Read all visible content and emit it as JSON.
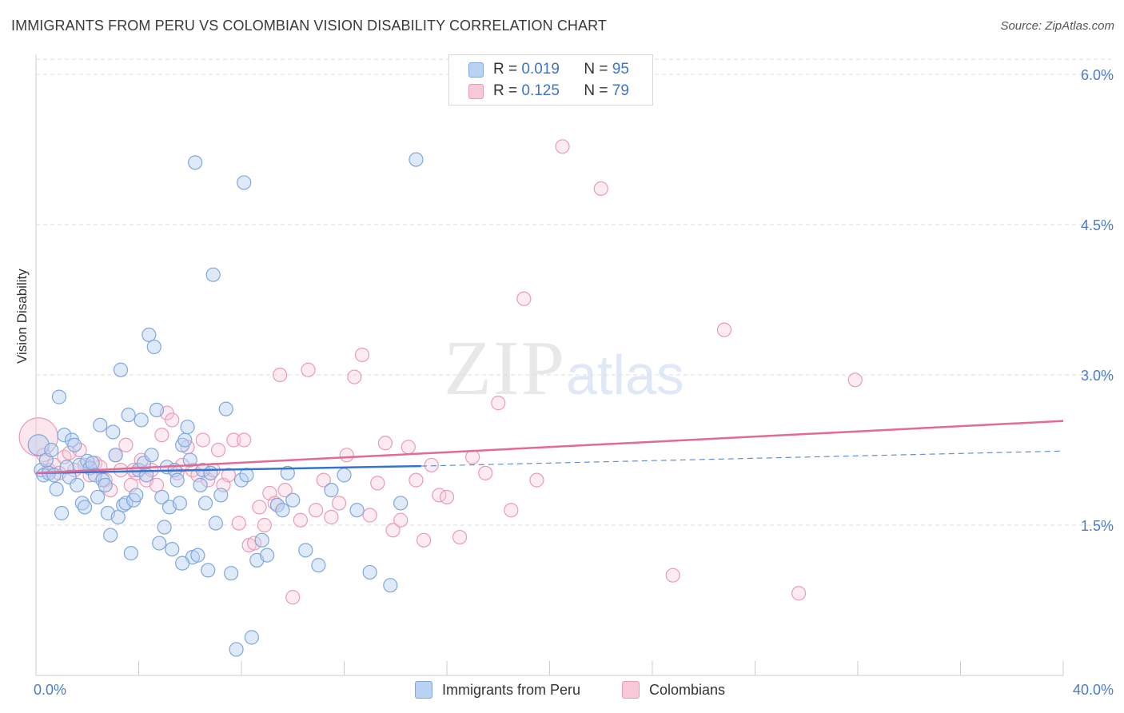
{
  "header": {
    "title": "IMMIGRANTS FROM PERU VS COLOMBIAN VISION DISABILITY CORRELATION CHART",
    "source": "Source: ZipAtlas.com"
  },
  "watermark": {
    "zip": "ZIP",
    "atlas": "atlas"
  },
  "legend": {
    "blue": {
      "r_label": "R =",
      "r_value": "0.019",
      "n_label": "N =",
      "n_value": "95"
    },
    "pink": {
      "r_label": "R =",
      "r_value": "0.125",
      "n_label": "N =",
      "n_value": "79"
    }
  },
  "colors": {
    "blue_fill": "#b9d1f2",
    "blue_stroke": "#7fa7de",
    "blue_line": "#3673d0",
    "pink_fill": "#f7c8d7",
    "pink_stroke": "#eb9ab6",
    "pink_line": "#e16a97",
    "tick_label": "#4a7cc9",
    "grid": "#dddddd"
  },
  "chart_data": {
    "type": "scatter",
    "title": "IMMIGRANTS FROM PERU VS COLOMBIAN VISION DISABILITY CORRELATION CHART",
    "xlabel": "",
    "ylabel": "Vision Disability",
    "xlim": [
      0,
      40
    ],
    "ylim": [
      0,
      6.2
    ],
    "x_ticks": [
      0,
      40
    ],
    "x_tick_labels": [
      "0.0%",
      "40.0%"
    ],
    "y_ticks": [
      1.5,
      3.0,
      4.5,
      6.0
    ],
    "y_tick_labels": [
      "1.5%",
      "3.0%",
      "4.5%",
      "6.0%"
    ],
    "series": [
      {
        "name": "Immigrants from Peru",
        "color": "#7fa7de",
        "trend": {
          "x_solid": [
            0,
            15
          ],
          "y_solid": [
            2.02,
            2.09
          ],
          "x_dashed": [
            15,
            40
          ],
          "y_dashed": [
            2.09,
            2.24
          ]
        },
        "points": [
          [
            0.1,
            2.3
          ],
          [
            0.2,
            2.05
          ],
          [
            0.3,
            2.0
          ],
          [
            0.4,
            2.15
          ],
          [
            0.5,
            2.02
          ],
          [
            0.6,
            2.25
          ],
          [
            0.7,
            2.0
          ],
          [
            0.8,
            1.86
          ],
          [
            0.9,
            2.78
          ],
          [
            1.0,
            1.62
          ],
          [
            1.1,
            2.4
          ],
          [
            1.2,
            2.08
          ],
          [
            1.3,
            1.98
          ],
          [
            1.4,
            2.35
          ],
          [
            1.5,
            2.3
          ],
          [
            1.6,
            1.9
          ],
          [
            1.7,
            2.1
          ],
          [
            1.8,
            1.72
          ],
          [
            1.9,
            1.68
          ],
          [
            2.0,
            2.14
          ],
          [
            2.1,
            2.07
          ],
          [
            2.2,
            2.12
          ],
          [
            2.3,
            2.0
          ],
          [
            2.4,
            1.78
          ],
          [
            2.5,
            2.5
          ],
          [
            2.6,
            1.95
          ],
          [
            2.7,
            1.9
          ],
          [
            2.8,
            1.62
          ],
          [
            2.9,
            1.4
          ],
          [
            3.0,
            2.43
          ],
          [
            3.1,
            2.2
          ],
          [
            3.2,
            1.58
          ],
          [
            3.3,
            3.05
          ],
          [
            3.4,
            1.7
          ],
          [
            3.5,
            1.72
          ],
          [
            3.6,
            2.6
          ],
          [
            3.7,
            1.22
          ],
          [
            3.8,
            1.75
          ],
          [
            3.9,
            1.8
          ],
          [
            4.0,
            2.05
          ],
          [
            4.1,
            2.55
          ],
          [
            4.2,
            2.12
          ],
          [
            4.3,
            2.0
          ],
          [
            4.4,
            3.4
          ],
          [
            4.5,
            2.2
          ],
          [
            4.6,
            3.28
          ],
          [
            4.7,
            2.65
          ],
          [
            4.8,
            1.32
          ],
          [
            4.9,
            1.78
          ],
          [
            5.0,
            1.48
          ],
          [
            5.1,
            2.08
          ],
          [
            5.2,
            1.68
          ],
          [
            5.3,
            1.26
          ],
          [
            5.4,
            2.05
          ],
          [
            5.5,
            1.95
          ],
          [
            5.6,
            1.72
          ],
          [
            5.7,
            2.3
          ],
          [
            5.8,
            2.35
          ],
          [
            5.9,
            2.48
          ],
          [
            6.0,
            2.15
          ],
          [
            6.1,
            1.18
          ],
          [
            6.2,
            5.12
          ],
          [
            6.3,
            1.2
          ],
          [
            6.4,
            1.9
          ],
          [
            6.5,
            2.05
          ],
          [
            6.6,
            1.72
          ],
          [
            6.7,
            1.05
          ],
          [
            6.8,
            2.02
          ],
          [
            6.9,
            4.0
          ],
          [
            7.0,
            1.52
          ],
          [
            7.2,
            1.8
          ],
          [
            7.4,
            2.66
          ],
          [
            7.6,
            1.02
          ],
          [
            7.8,
            0.26
          ],
          [
            8.0,
            1.95
          ],
          [
            8.2,
            2.0
          ],
          [
            8.4,
            0.38
          ],
          [
            8.6,
            1.15
          ],
          [
            8.8,
            1.35
          ],
          [
            9.0,
            1.2
          ],
          [
            9.4,
            1.7
          ],
          [
            9.6,
            1.65
          ],
          [
            9.8,
            2.02
          ],
          [
            10.0,
            1.75
          ],
          [
            10.5,
            1.25
          ],
          [
            11.0,
            1.1
          ],
          [
            11.5,
            1.85
          ],
          [
            12.0,
            2.0
          ],
          [
            12.5,
            1.65
          ],
          [
            13.0,
            1.03
          ],
          [
            13.8,
            0.9
          ],
          [
            14.2,
            1.72
          ],
          [
            14.8,
            5.15
          ],
          [
            8.1,
            4.92
          ],
          [
            5.7,
            1.12
          ]
        ]
      },
      {
        "name": "Colombians",
        "color": "#eb9ab6",
        "trend": {
          "x": [
            0,
            40
          ],
          "y": [
            2.02,
            2.54
          ]
        },
        "points": [
          [
            0.1,
            2.38
          ],
          [
            0.3,
            2.2
          ],
          [
            0.5,
            2.05
          ],
          [
            0.7,
            2.1
          ],
          [
            0.9,
            2.02
          ],
          [
            1.1,
            2.18
          ],
          [
            1.3,
            2.22
          ],
          [
            1.5,
            2.05
          ],
          [
            1.7,
            2.25
          ],
          [
            1.9,
            2.1
          ],
          [
            2.1,
            2.0
          ],
          [
            2.3,
            2.12
          ],
          [
            2.5,
            2.08
          ],
          [
            2.7,
            1.95
          ],
          [
            2.9,
            1.85
          ],
          [
            3.1,
            2.2
          ],
          [
            3.3,
            2.05
          ],
          [
            3.5,
            2.3
          ],
          [
            3.7,
            1.9
          ],
          [
            3.9,
            2.02
          ],
          [
            4.1,
            2.15
          ],
          [
            4.3,
            1.95
          ],
          [
            4.5,
            2.05
          ],
          [
            4.7,
            1.9
          ],
          [
            4.9,
            2.4
          ],
          [
            5.1,
            2.62
          ],
          [
            5.3,
            2.55
          ],
          [
            5.5,
            2.02
          ],
          [
            5.7,
            2.1
          ],
          [
            5.9,
            2.28
          ],
          [
            6.1,
            2.05
          ],
          [
            6.3,
            2.0
          ],
          [
            6.5,
            2.35
          ],
          [
            6.7,
            1.95
          ],
          [
            6.9,
            2.05
          ],
          [
            7.1,
            2.25
          ],
          [
            7.3,
            1.9
          ],
          [
            7.5,
            2.0
          ],
          [
            7.7,
            2.35
          ],
          [
            7.9,
            1.52
          ],
          [
            8.1,
            2.35
          ],
          [
            8.3,
            1.3
          ],
          [
            8.5,
            1.32
          ],
          [
            8.7,
            1.68
          ],
          [
            8.9,
            1.5
          ],
          [
            9.1,
            1.82
          ],
          [
            9.3,
            1.72
          ],
          [
            9.5,
            3.0
          ],
          [
            9.7,
            1.85
          ],
          [
            10.0,
            0.78
          ],
          [
            10.3,
            1.55
          ],
          [
            10.6,
            3.05
          ],
          [
            10.9,
            1.65
          ],
          [
            11.2,
            1.95
          ],
          [
            11.5,
            1.58
          ],
          [
            11.8,
            1.72
          ],
          [
            12.1,
            2.2
          ],
          [
            12.4,
            2.98
          ],
          [
            12.7,
            3.2
          ],
          [
            13.0,
            1.6
          ],
          [
            13.3,
            1.92
          ],
          [
            13.6,
            2.32
          ],
          [
            13.9,
            1.45
          ],
          [
            14.2,
            1.55
          ],
          [
            14.5,
            2.28
          ],
          [
            14.8,
            1.95
          ],
          [
            15.1,
            1.35
          ],
          [
            15.4,
            2.1
          ],
          [
            15.7,
            1.8
          ],
          [
            16.0,
            1.78
          ],
          [
            16.5,
            1.38
          ],
          [
            17.0,
            2.18
          ],
          [
            17.5,
            2.02
          ],
          [
            18.0,
            2.72
          ],
          [
            18.5,
            1.65
          ],
          [
            19.0,
            3.76
          ],
          [
            19.5,
            1.95
          ],
          [
            20.5,
            5.28
          ],
          [
            22.0,
            4.86
          ]
        ]
      }
    ],
    "extra_points": {
      "Colombians": [
        [
          24.8,
          1.0
        ],
        [
          26.8,
          3.45
        ],
        [
          29.7,
          0.82
        ],
        [
          31.9,
          2.95
        ],
        [
          3.8,
          2.05
        ]
      ]
    }
  },
  "bottom_legend": {
    "blue_label": "Immigrants from Peru",
    "pink_label": "Colombians"
  }
}
